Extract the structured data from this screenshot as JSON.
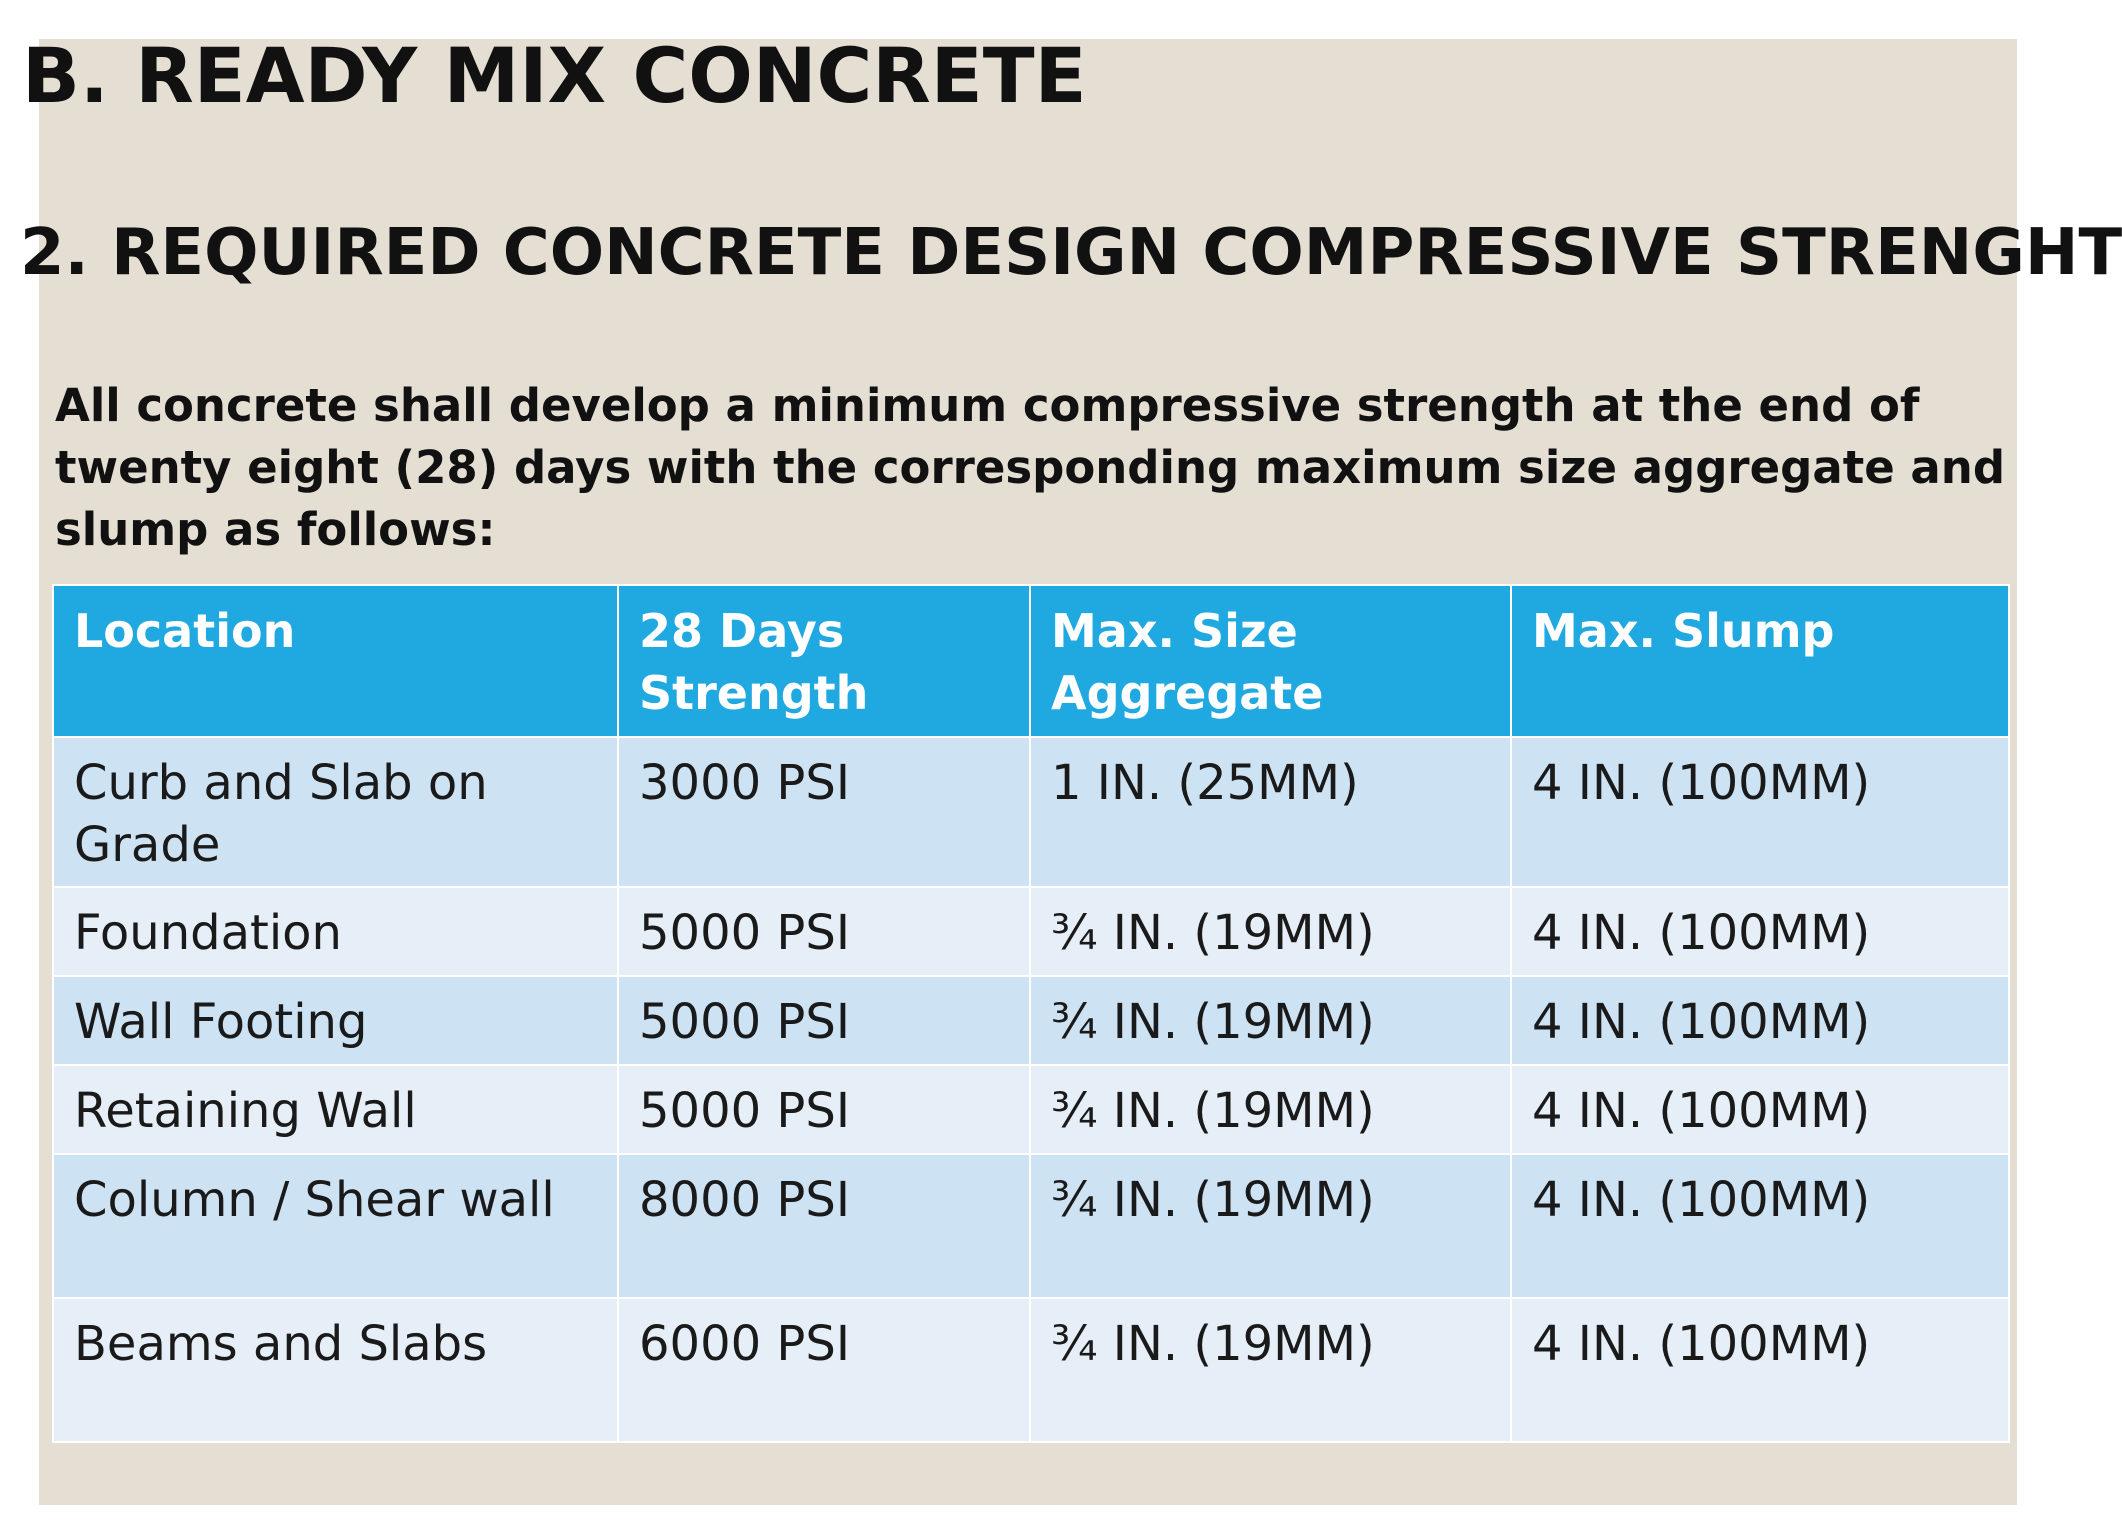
{
  "slide": {
    "title": "B. READY MIX CONCRETE",
    "subtitle": "2. REQUIRED CONCRETE DESIGN COMPRESSIVE STRENGHT",
    "intro": "All concrete shall develop a minimum compressive strength at the end of twenty eight (28) days with the corresponding maximum size aggregate and slump as follows:"
  },
  "table": {
    "headers": [
      "Location",
      "28 Days Strength",
      "Max. Size Aggregate",
      "Max. Slump"
    ],
    "rows": [
      [
        "Curb and Slab on Grade",
        "3000 PSI",
        "1 IN. (25MM)",
        "4 IN. (100MM)"
      ],
      [
        "Foundation",
        "5000 PSI",
        "¾ IN. (19MM)",
        "4 IN. (100MM)"
      ],
      [
        "Wall Footing",
        "5000 PSI",
        "¾ IN. (19MM)",
        "4 IN. (100MM)"
      ],
      [
        "Retaining Wall",
        "5000 PSI",
        "¾ IN. (19MM)",
        "4 IN. (100MM)"
      ],
      [
        "Column / Shear wall",
        "8000 PSI",
        "¾ IN. (19MM)",
        "4 IN. (100MM)"
      ],
      [
        "Beams and Slabs",
        "6000 PSI",
        "¾ IN. (19MM)",
        "4 IN. (100MM)"
      ]
    ]
  },
  "colors": {
    "slide_background": "#e4ded3",
    "header_background": "#20a8e0",
    "row_dark": "#cde2f3",
    "row_light": "#e6eff8"
  }
}
